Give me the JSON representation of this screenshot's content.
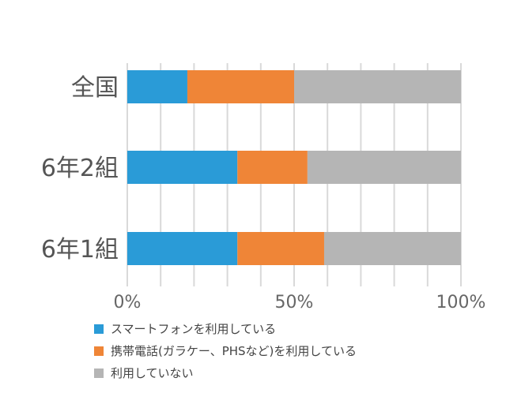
{
  "chart_data": {
    "type": "bar",
    "orientation": "horizontal",
    "stacked": "percent",
    "categories": [
      "全国",
      "6年2組",
      "6年1組"
    ],
    "series": [
      {
        "name": "スマートフォンを利用している",
        "color": "#2a9bd7",
        "values": [
          18,
          33,
          33
        ]
      },
      {
        "name": "携帯電話(ガラケー、PHSなど)を利用している",
        "color": "#ef8537",
        "values": [
          32,
          21,
          26
        ]
      },
      {
        "name": "利用していない",
        "color": "#b5b5b5",
        "values": [
          50,
          46,
          41
        ]
      }
    ],
    "xlim": [
      0,
      100
    ],
    "xticks": [
      "0%",
      "50%",
      "100%"
    ],
    "grid": true,
    "legend_position": "bottom"
  }
}
